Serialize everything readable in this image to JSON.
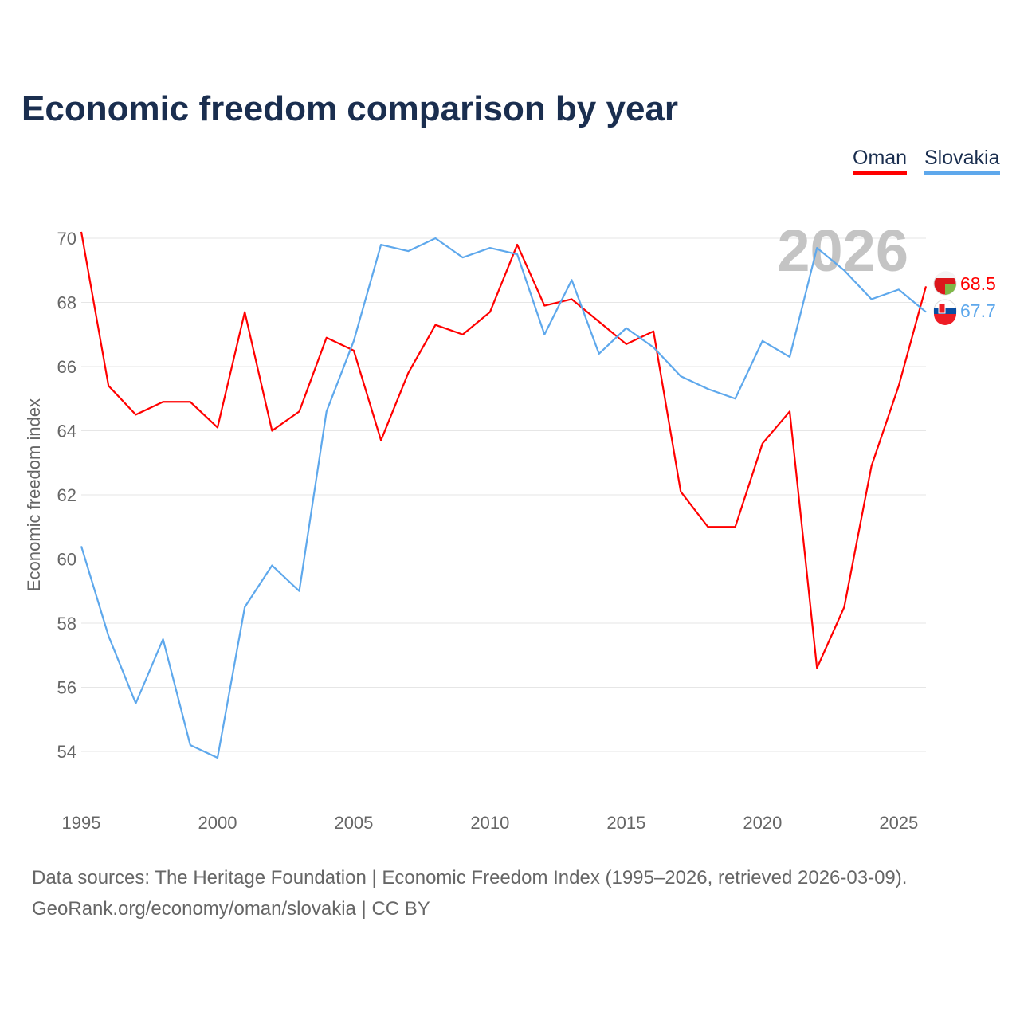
{
  "chart_data": {
    "type": "line",
    "title": "Economic freedom comparison by year",
    "xlabel": "",
    "ylabel": "Economic freedom index",
    "xlim": [
      1995,
      2026
    ],
    "ylim": [
      53,
      71
    ],
    "grid": true,
    "legend_position": "top-right",
    "yticks": [
      54,
      56,
      58,
      60,
      62,
      64,
      66,
      68,
      70
    ],
    "xticks": [
      1995,
      2000,
      2005,
      2010,
      2015,
      2020,
      2025
    ],
    "year_watermark": "2026",
    "x": [
      1995,
      1996,
      1997,
      1998,
      1999,
      2000,
      2001,
      2002,
      2003,
      2004,
      2005,
      2006,
      2007,
      2008,
      2009,
      2010,
      2011,
      2012,
      2013,
      2014,
      2015,
      2016,
      2017,
      2018,
      2019,
      2020,
      2021,
      2022,
      2023,
      2024,
      2025,
      2026
    ],
    "series": [
      {
        "name": "Oman",
        "color": "#ff0000",
        "end_label": "68.5",
        "values": [
          70.2,
          65.4,
          64.5,
          64.9,
          64.9,
          64.1,
          67.7,
          64.0,
          64.6,
          66.9,
          66.5,
          63.7,
          65.8,
          67.3,
          67.0,
          67.7,
          69.8,
          67.9,
          68.1,
          67.4,
          66.7,
          67.1,
          62.1,
          61.0,
          61.0,
          63.6,
          64.6,
          56.6,
          58.5,
          62.9,
          65.4,
          68.5
        ]
      },
      {
        "name": "Slovakia",
        "color": "#5ea8ec",
        "end_label": "67.7",
        "values": [
          60.4,
          57.6,
          55.5,
          57.5,
          54.2,
          53.8,
          58.5,
          59.8,
          59.0,
          64.6,
          66.8,
          69.8,
          69.6,
          70.0,
          69.4,
          69.7,
          69.5,
          67.0,
          68.7,
          66.4,
          67.2,
          66.6,
          65.7,
          65.3,
          65.0,
          66.8,
          66.3,
          69.7,
          69.0,
          68.1,
          68.4,
          67.7
        ]
      }
    ]
  },
  "sources": {
    "line1": "Data sources: The Heritage Foundation | Economic Freedom Index (1995–2026, retrieved 2026-03-09).",
    "line2": "GeoRank.org/economy/oman/slovakia | CC BY"
  }
}
